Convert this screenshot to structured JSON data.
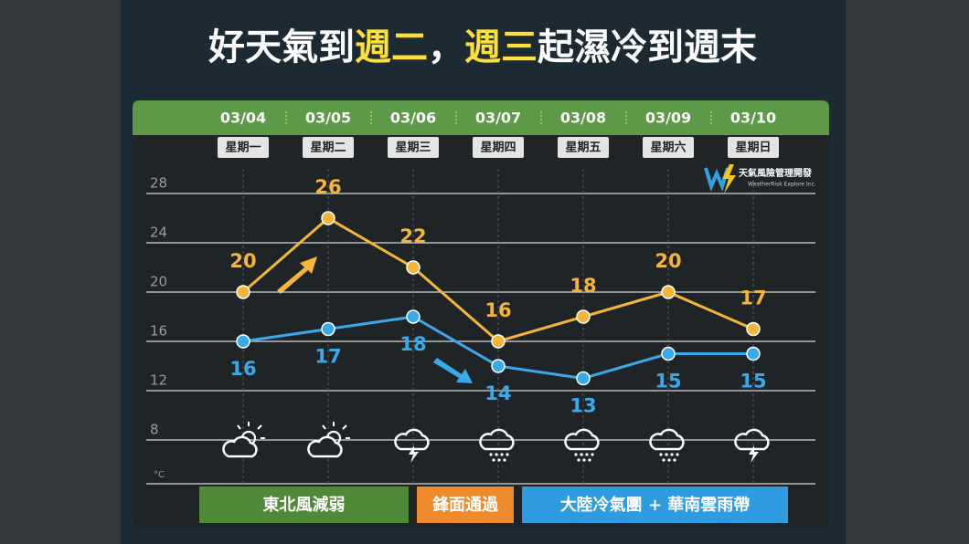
{
  "chart_data": {
    "type": "line",
    "title": [
      {
        "text": "好天氣到",
        "color": "#ffffff"
      },
      {
        "text": "週二",
        "color": "#ffe03a"
      },
      {
        "text": "，",
        "color": "#ffffff"
      },
      {
        "text": "週三",
        "color": "#ffe03a"
      },
      {
        "text": "起濕冷到週末",
        "color": "#ffffff"
      }
    ],
    "categories": [
      "03/04",
      "03/05",
      "03/06",
      "03/07",
      "03/08",
      "03/09",
      "03/10"
    ],
    "weekdays": [
      "星期一",
      "星期二",
      "星期三",
      "星期四",
      "星期五",
      "星期六",
      "星期日"
    ],
    "series": [
      {
        "name": "high",
        "color": "#f5b53a",
        "values": [
          20,
          26,
          22,
          16,
          18,
          20,
          17
        ]
      },
      {
        "name": "low",
        "color": "#3aa9ea",
        "values": [
          16,
          17,
          18,
          14,
          13,
          15,
          15
        ]
      }
    ],
    "ylim": [
      4,
      30
    ],
    "yticks": [
      28,
      24,
      20,
      16,
      12,
      8
    ],
    "y_unit": "°C",
    "grid": true,
    "logo": {
      "name": "天氣風險管理開發",
      "sub": "WeatherRisk Explore Inc."
    },
    "phases": [
      {
        "text": "東北風減弱",
        "color": "#4f8a3a"
      },
      {
        "text": "鋒面通過",
        "color": "#ef8a2c"
      },
      {
        "text": "大陸冷氣團 + 華南雲雨帶",
        "color": "#2f9be0"
      }
    ]
  }
}
